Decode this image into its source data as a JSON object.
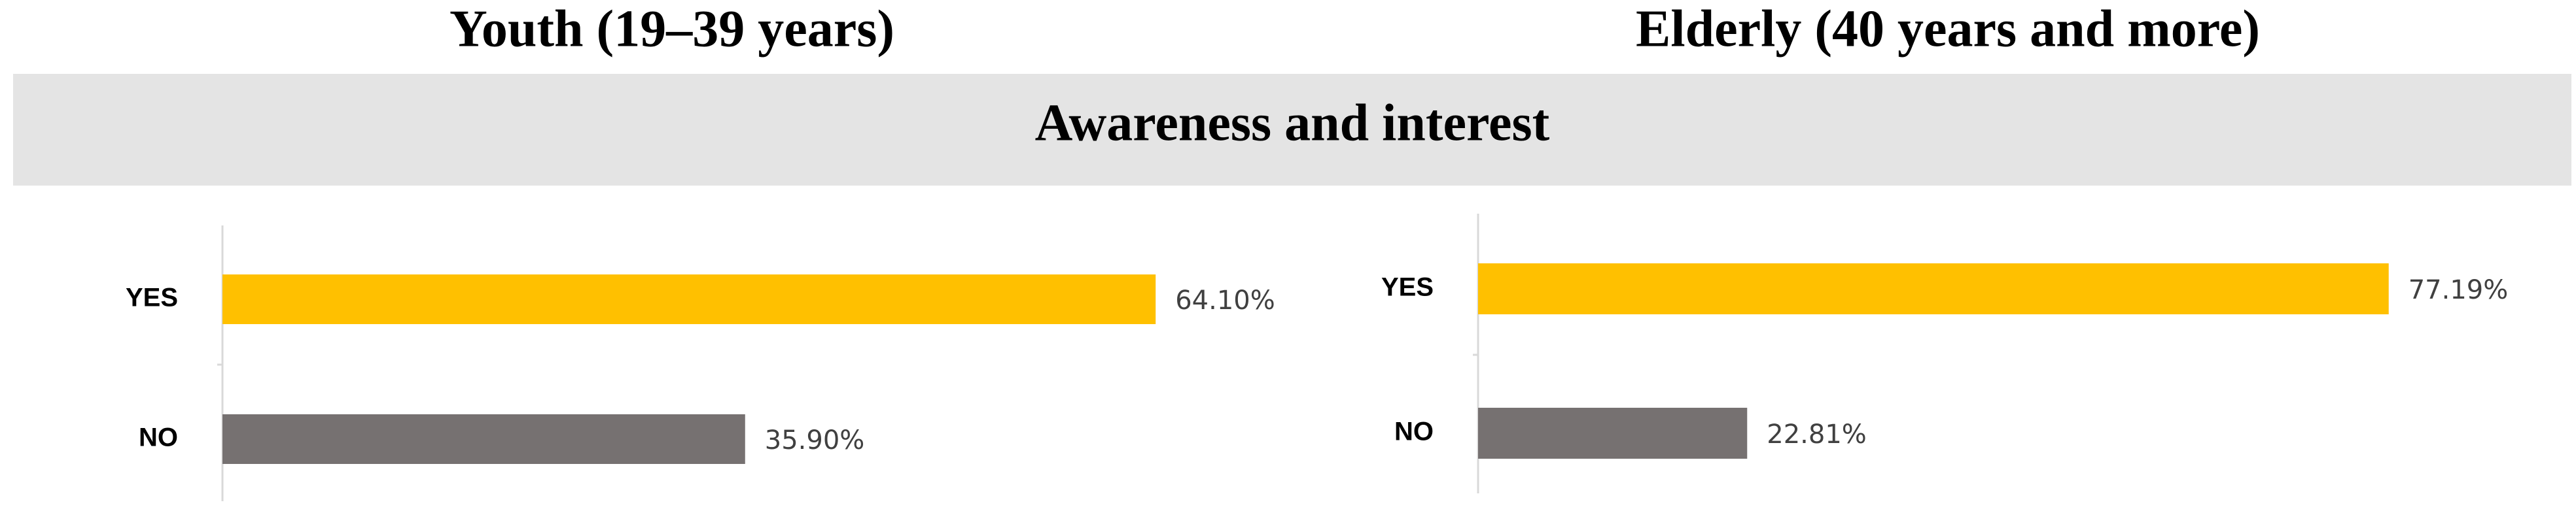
{
  "section_title": "Awareness and interest",
  "chart_data": [
    {
      "type": "bar",
      "orientation": "horizontal",
      "title": "Youth (19–39 years)",
      "categories": [
        "YES",
        "NO"
      ],
      "values": [
        64.1,
        35.9
      ],
      "value_labels": [
        "64.10%",
        "35.90%"
      ],
      "colors": [
        "#ffc000",
        "#767171"
      ],
      "xlim": [
        0,
        100
      ]
    },
    {
      "type": "bar",
      "orientation": "horizontal",
      "title": "Elderly (40 years and more)",
      "categories": [
        "YES",
        "NO"
      ],
      "values": [
        77.19,
        22.81
      ],
      "value_labels": [
        "77.19%",
        "22.81%"
      ],
      "colors": [
        "#ffc000",
        "#767171"
      ],
      "xlim": [
        0,
        100
      ]
    }
  ]
}
